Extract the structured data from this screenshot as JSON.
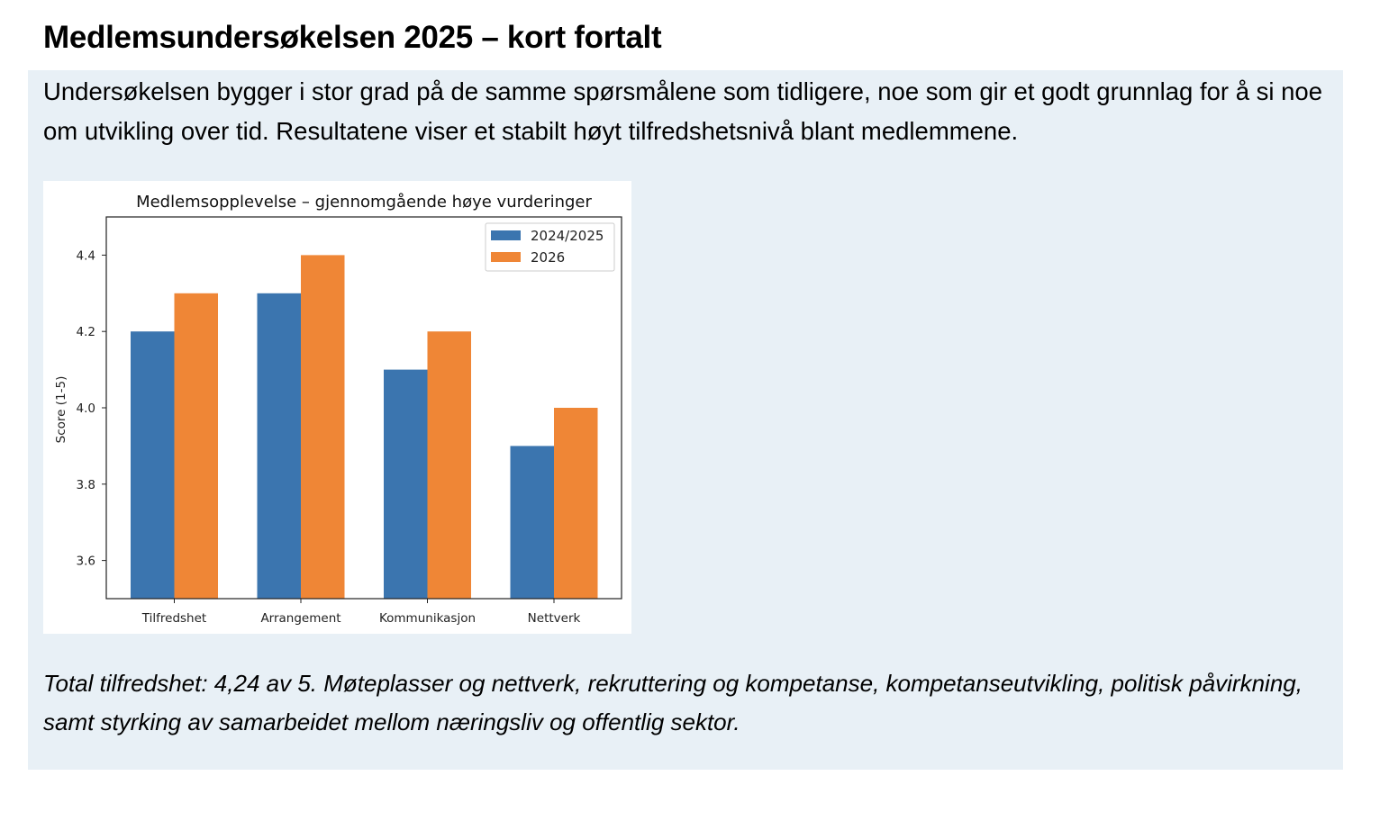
{
  "heading": "Medlemsundersøkelsen 2025 – kort fortalt",
  "intro": "Undersøkelsen bygger i stor grad på de samme spørsmålene som tidligere, noe som gir et godt grunnlag for å si noe om utvikling over tid. Resultatene viser et stabilt høyt tilfredshetsnivå blant medlemmene.",
  "summary": "Total tilfredshet: 4,24 av 5. Møteplasser og nettverk, rekruttering og kompetanse, kompetanseutvikling, politisk påvirkning, samt styrking av samarbeidet mellom næringsliv og offentlig sektor.",
  "colors": {
    "panel_bg": "#e8f0f6",
    "series_2024": "#3b75af",
    "series_2026": "#ef8636"
  },
  "chart_data": {
    "type": "bar",
    "title": "Medlemsopplevelse – gjennomgående høye vurderinger",
    "xlabel": "",
    "ylabel": "Score (1-5)",
    "ylim": [
      3.5,
      4.5
    ],
    "yticks": [
      "3.6",
      "3.8",
      "4.0",
      "4.2",
      "4.4"
    ],
    "categories": [
      "Tilfredshet",
      "Arrangement",
      "Kommunikasjon",
      "Nettverk"
    ],
    "series": [
      {
        "name": "2024/2025",
        "color": "#3b75af",
        "values": [
          4.2,
          4.3,
          4.1,
          3.9
        ]
      },
      {
        "name": "2026",
        "color": "#ef8636",
        "values": [
          4.3,
          4.4,
          4.2,
          4.0
        ]
      }
    ],
    "legend": "top-right",
    "grid": false
  }
}
